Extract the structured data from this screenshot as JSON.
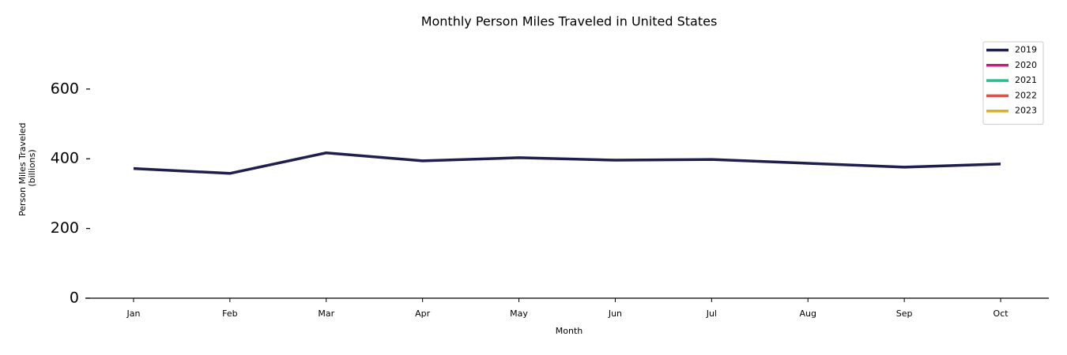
{
  "chart_data": {
    "type": "line",
    "title": "Monthly Person Miles Traveled in United States",
    "xlabel": "Month",
    "ylabel": [
      "Person Miles Traveled",
      "(billions)"
    ],
    "categories": [
      "Jan",
      "Feb",
      "Mar",
      "Apr",
      "May",
      "Jun",
      "Jul",
      "Aug",
      "Sep",
      "Oct"
    ],
    "series": [
      {
        "name": "2019",
        "color": "#1e1f4e",
        "values": [
          372,
          358,
          417,
          394,
          403,
          396,
          398,
          387,
          376,
          385
        ]
      },
      {
        "name": "2020",
        "color": "#c81e7e",
        "values": [
          null,
          null,
          null,
          null,
          null,
          null,
          null,
          null,
          null,
          null
        ]
      },
      {
        "name": "2021",
        "color": "#22c08a",
        "values": [
          null,
          null,
          null,
          null,
          null,
          null,
          null,
          null,
          null,
          null
        ]
      },
      {
        "name": "2022",
        "color": "#d9534a",
        "values": [
          null,
          null,
          null,
          null,
          null,
          null,
          null,
          null,
          null,
          null
        ]
      },
      {
        "name": "2023",
        "color": "#dfb21c",
        "values": [
          null,
          null,
          null,
          null,
          null,
          null,
          null,
          null,
          null,
          null
        ]
      }
    ],
    "ylim": [
      0,
      740
    ],
    "yticks": [
      0,
      200,
      400,
      600
    ],
    "grid": false,
    "legend": "upper right"
  }
}
